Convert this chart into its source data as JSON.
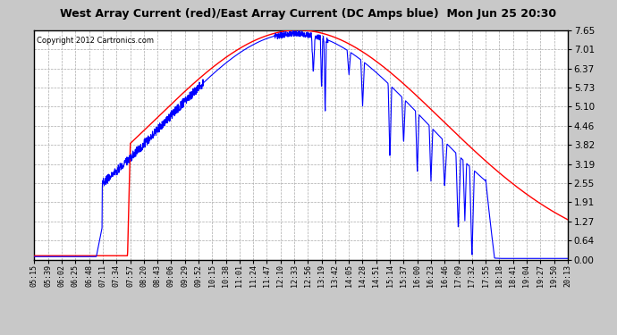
{
  "title": "West Array Current (red)/East Array Current (DC Amps blue)  Mon Jun 25 20:30",
  "copyright": "Copyright 2012 Cartronics.com",
  "y_ticks": [
    0.0,
    0.64,
    1.27,
    1.91,
    2.55,
    3.19,
    3.82,
    4.46,
    5.1,
    5.73,
    6.37,
    7.01,
    7.65
  ],
  "y_max": 7.65,
  "y_min": 0.0,
  "background_color": "#c8c8c8",
  "plot_bg_color": "#ffffff",
  "grid_color": "#aaaaaa",
  "red_color": "#ff0000",
  "blue_color": "#0000ff",
  "x_labels": [
    "05:15",
    "05:39",
    "06:02",
    "06:25",
    "06:48",
    "07:11",
    "07:34",
    "07:57",
    "08:20",
    "08:43",
    "09:06",
    "09:29",
    "09:52",
    "10:15",
    "10:38",
    "11:01",
    "11:24",
    "11:47",
    "12:10",
    "12:33",
    "12:56",
    "13:19",
    "13:42",
    "14:05",
    "14:28",
    "14:51",
    "15:14",
    "15:37",
    "16:00",
    "16:23",
    "16:46",
    "17:09",
    "17:32",
    "17:55",
    "18:18",
    "18:41",
    "19:04",
    "19:27",
    "19:50",
    "20:13"
  ]
}
